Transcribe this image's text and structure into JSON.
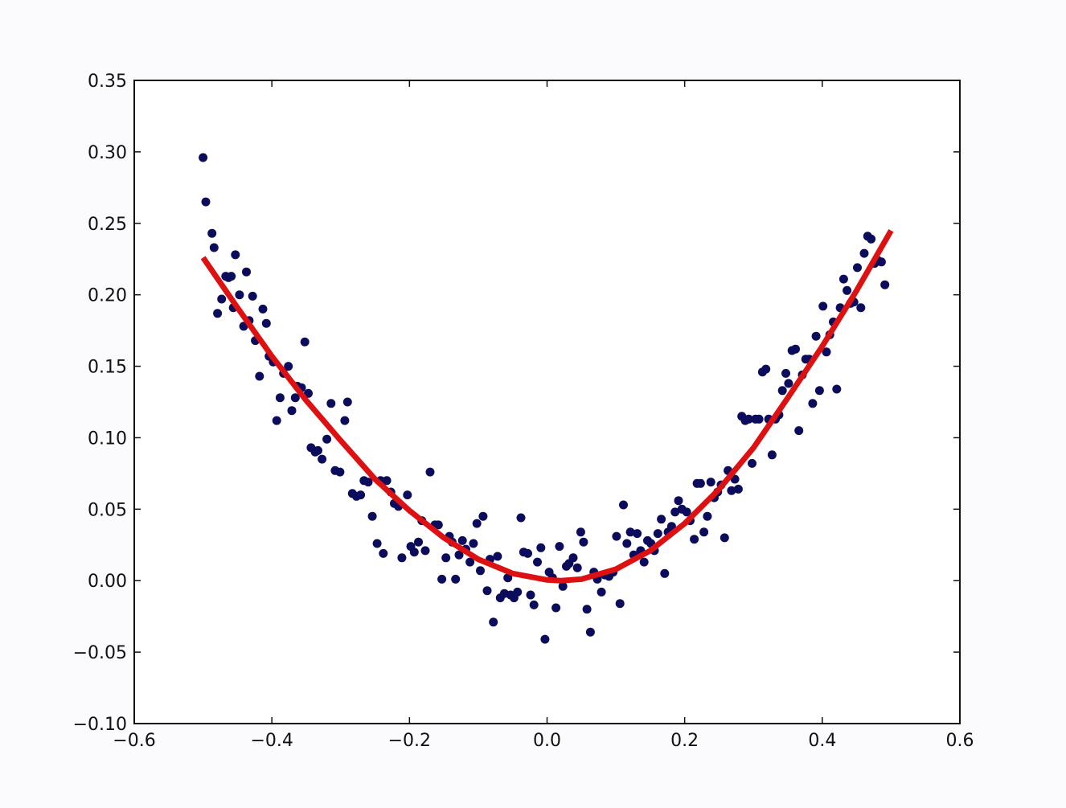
{
  "chart_data": {
    "type": "scatter",
    "title": "",
    "xlabel": "",
    "ylabel": "",
    "xlim": [
      -0.6,
      0.6
    ],
    "ylim": [
      -0.1,
      0.35
    ],
    "grid": false,
    "x_ticks": [
      -0.6,
      -0.4,
      -0.2,
      0.0,
      0.2,
      0.4,
      0.6
    ],
    "x_tick_labels": [
      "−0.6",
      "−0.4",
      "−0.2",
      "0.0",
      "0.2",
      "0.4",
      "0.6"
    ],
    "y_ticks": [
      -0.1,
      -0.05,
      0.0,
      0.05,
      0.1,
      0.15,
      0.2,
      0.25,
      0.3,
      0.35
    ],
    "y_tick_labels": [
      "−0.10",
      "−0.05",
      "0.00",
      "0.05",
      "0.10",
      "0.15",
      "0.20",
      "0.25",
      "0.30",
      "0.35"
    ],
    "colors": {
      "points": "#0c0c5c",
      "fit": "#dd1111",
      "axes": "#111111"
    },
    "series": [
      {
        "kind": "scatter",
        "points": [
          [
            -0.5,
            0.296
          ],
          [
            -0.496,
            0.265
          ],
          [
            -0.487,
            0.243
          ],
          [
            -0.484,
            0.233
          ],
          [
            -0.479,
            0.187
          ],
          [
            -0.473,
            0.197
          ],
          [
            -0.467,
            0.213
          ],
          [
            -0.463,
            0.212
          ],
          [
            -0.459,
            0.213
          ],
          [
            -0.456,
            0.191
          ],
          [
            -0.453,
            0.228
          ],
          [
            -0.447,
            0.2
          ],
          [
            -0.441,
            0.178
          ],
          [
            -0.437,
            0.216
          ],
          [
            -0.433,
            0.182
          ],
          [
            -0.428,
            0.199
          ],
          [
            -0.424,
            0.168
          ],
          [
            -0.418,
            0.143
          ],
          [
            -0.413,
            0.19
          ],
          [
            -0.408,
            0.18
          ],
          [
            -0.404,
            0.157
          ],
          [
            -0.398,
            0.153
          ],
          [
            -0.393,
            0.112
          ],
          [
            -0.388,
            0.128
          ],
          [
            -0.383,
            0.145
          ],
          [
            -0.376,
            0.15
          ],
          [
            -0.371,
            0.119
          ],
          [
            -0.366,
            0.128
          ],
          [
            -0.363,
            0.136
          ],
          [
            -0.357,
            0.135
          ],
          [
            -0.352,
            0.167
          ],
          [
            -0.347,
            0.131
          ],
          [
            -0.343,
            0.093
          ],
          [
            -0.337,
            0.09
          ],
          [
            -0.333,
            0.091
          ],
          [
            -0.327,
            0.085
          ],
          [
            -0.32,
            0.099
          ],
          [
            -0.314,
            0.124
          ],
          [
            -0.308,
            0.077
          ],
          [
            -0.301,
            0.076
          ],
          [
            -0.294,
            0.112
          ],
          [
            -0.29,
            0.125
          ],
          [
            -0.283,
            0.061
          ],
          [
            -0.277,
            0.059
          ],
          [
            -0.271,
            0.06
          ],
          [
            -0.266,
            0.07
          ],
          [
            -0.26,
            0.069
          ],
          [
            -0.254,
            0.045
          ],
          [
            -0.247,
            0.026
          ],
          [
            -0.242,
            0.07
          ],
          [
            -0.238,
            0.019
          ],
          [
            -0.233,
            0.07
          ],
          [
            -0.227,
            0.062
          ],
          [
            -0.222,
            0.054
          ],
          [
            -0.216,
            0.052
          ],
          [
            -0.211,
            0.016
          ],
          [
            -0.203,
            0.06
          ],
          [
            -0.198,
            0.024
          ],
          [
            -0.193,
            0.02
          ],
          [
            -0.187,
            0.027
          ],
          [
            -0.182,
            0.042
          ],
          [
            -0.177,
            0.021
          ],
          [
            -0.17,
            0.076
          ],
          [
            -0.163,
            0.039
          ],
          [
            -0.158,
            0.039
          ],
          [
            -0.153,
            0.001
          ],
          [
            -0.147,
            0.016
          ],
          [
            -0.142,
            0.031
          ],
          [
            -0.138,
            0.027
          ],
          [
            -0.133,
            0.001
          ],
          [
            -0.128,
            0.018
          ],
          [
            -0.123,
            0.028
          ],
          [
            -0.118,
            0.022
          ],
          [
            -0.112,
            0.013
          ],
          [
            -0.107,
            0.026
          ],
          [
            -0.102,
            0.04
          ],
          [
            -0.097,
            0.007
          ],
          [
            -0.093,
            0.045
          ],
          [
            -0.087,
            -0.007
          ],
          [
            -0.083,
            0.015
          ],
          [
            -0.078,
            -0.029
          ],
          [
            -0.072,
            0.017
          ],
          [
            -0.068,
            -0.012
          ],
          [
            -0.062,
            -0.009
          ],
          [
            -0.057,
            0.002
          ],
          [
            -0.053,
            -0.01
          ],
          [
            -0.048,
            -0.012
          ],
          [
            -0.043,
            -0.008
          ],
          [
            -0.038,
            0.044
          ],
          [
            -0.034,
            0.02
          ],
          [
            -0.028,
            0.019
          ],
          [
            -0.024,
            -0.01
          ],
          [
            -0.019,
            -0.017
          ],
          [
            -0.014,
            0.013
          ],
          [
            -0.009,
            0.023
          ],
          [
            -0.003,
            -0.041
          ],
          [
            0.003,
            0.006
          ],
          [
            0.008,
            0.002
          ],
          [
            0.013,
            -0.019
          ],
          [
            0.018,
            0.024
          ],
          [
            0.023,
            -0.004
          ],
          [
            0.028,
            0.01
          ],
          [
            0.032,
            0.012
          ],
          [
            0.038,
            0.016
          ],
          [
            0.044,
            0.009
          ],
          [
            0.049,
            0.034
          ],
          [
            0.053,
            0.027
          ],
          [
            0.058,
            -0.02
          ],
          [
            0.063,
            -0.036
          ],
          [
            0.068,
            0.006
          ],
          [
            0.073,
            0.001
          ],
          [
            0.079,
            -0.008
          ],
          [
            0.084,
            0.004
          ],
          [
            0.09,
            0.003
          ],
          [
            0.096,
            0.006
          ],
          [
            0.101,
            0.031
          ],
          [
            0.106,
            -0.016
          ],
          [
            0.111,
            0.053
          ],
          [
            0.116,
            0.026
          ],
          [
            0.121,
            0.034
          ],
          [
            0.126,
            0.018
          ],
          [
            0.131,
            0.033
          ],
          [
            0.136,
            0.021
          ],
          [
            0.141,
            0.013
          ],
          [
            0.146,
            0.028
          ],
          [
            0.151,
            0.026
          ],
          [
            0.156,
            0.021
          ],
          [
            0.161,
            0.033
          ],
          [
            0.166,
            0.043
          ],
          [
            0.171,
            0.005
          ],
          [
            0.176,
            0.034
          ],
          [
            0.181,
            0.038
          ],
          [
            0.186,
            0.048
          ],
          [
            0.191,
            0.056
          ],
          [
            0.196,
            0.05
          ],
          [
            0.203,
            0.048
          ],
          [
            0.208,
            0.042
          ],
          [
            0.214,
            0.029
          ],
          [
            0.218,
            0.068
          ],
          [
            0.223,
            0.068
          ],
          [
            0.228,
            0.034
          ],
          [
            0.233,
            0.045
          ],
          [
            0.238,
            0.069
          ],
          [
            0.243,
            0.058
          ],
          [
            0.248,
            0.062
          ],
          [
            0.253,
            0.067
          ],
          [
            0.258,
            0.03
          ],
          [
            0.263,
            0.077
          ],
          [
            0.268,
            0.063
          ],
          [
            0.273,
            0.071
          ],
          [
            0.278,
            0.064
          ],
          [
            0.283,
            0.115
          ],
          [
            0.288,
            0.112
          ],
          [
            0.293,
            0.113
          ],
          [
            0.298,
            0.082
          ],
          [
            0.303,
            0.113
          ],
          [
            0.308,
            0.113
          ],
          [
            0.313,
            0.146
          ],
          [
            0.318,
            0.148
          ],
          [
            0.322,
            0.113
          ],
          [
            0.327,
            0.088
          ],
          [
            0.332,
            0.113
          ],
          [
            0.337,
            0.116
          ],
          [
            0.342,
            0.133
          ],
          [
            0.347,
            0.145
          ],
          [
            0.351,
            0.138
          ],
          [
            0.356,
            0.161
          ],
          [
            0.361,
            0.162
          ],
          [
            0.366,
            0.105
          ],
          [
            0.371,
            0.144
          ],
          [
            0.376,
            0.155
          ],
          [
            0.381,
            0.155
          ],
          [
            0.386,
            0.124
          ],
          [
            0.391,
            0.171
          ],
          [
            0.396,
            0.133
          ],
          [
            0.401,
            0.192
          ],
          [
            0.406,
            0.16
          ],
          [
            0.411,
            0.172
          ],
          [
            0.416,
            0.181
          ],
          [
            0.421,
            0.134
          ],
          [
            0.426,
            0.191
          ],
          [
            0.431,
            0.211
          ],
          [
            0.436,
            0.203
          ],
          [
            0.441,
            0.194
          ],
          [
            0.446,
            0.195
          ],
          [
            0.451,
            0.219
          ],
          [
            0.456,
            0.191
          ],
          [
            0.461,
            0.229
          ],
          [
            0.466,
            0.241
          ],
          [
            0.471,
            0.239
          ],
          [
            0.476,
            0.222
          ],
          [
            0.481,
            0.224
          ],
          [
            0.486,
            0.223
          ],
          [
            0.491,
            0.207
          ]
        ]
      },
      {
        "kind": "line",
        "x": [
          -0.5,
          -0.45,
          -0.4,
          -0.35,
          -0.3,
          -0.25,
          -0.2,
          -0.15,
          -0.1,
          -0.05,
          0.0,
          0.02,
          0.05,
          0.1,
          0.15,
          0.2,
          0.25,
          0.3,
          0.35,
          0.4,
          0.45,
          0.5
        ],
        "y": [
          0.226,
          0.191,
          0.157,
          0.126,
          0.098,
          0.071,
          0.049,
          0.03,
          0.015,
          0.005,
          0.0005,
          0.0,
          0.001,
          0.008,
          0.021,
          0.04,
          0.064,
          0.093,
          0.128,
          0.164,
          0.203,
          0.245
        ]
      }
    ]
  }
}
